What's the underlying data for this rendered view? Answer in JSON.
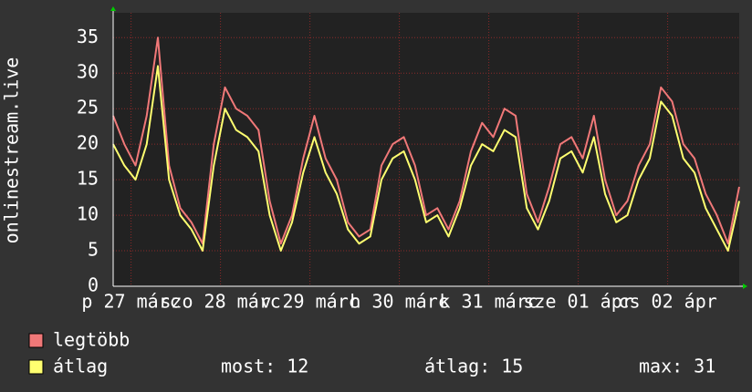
{
  "chart_data": {
    "type": "line",
    "y_label": "onlinestream.live",
    "x": [
      0,
      0.125,
      0.25,
      0.375,
      0.5,
      0.625,
      0.75,
      0.875,
      1,
      1.125,
      1.25,
      1.375,
      1.5,
      1.625,
      1.75,
      1.875,
      2,
      2.125,
      2.25,
      2.375,
      2.5,
      2.625,
      2.75,
      2.875,
      3,
      3.125,
      3.25,
      3.375,
      3.5,
      3.625,
      3.75,
      3.875,
      4,
      4.125,
      4.25,
      4.375,
      4.5,
      4.625,
      4.75,
      4.875,
      5,
      5.125,
      5.25,
      5.375,
      5.5,
      5.625,
      5.75,
      5.875,
      6,
      6.125,
      6.25,
      6.375,
      6.5,
      6.625,
      6.75,
      6.875,
      7
    ],
    "xlim": [
      0,
      7
    ],
    "xticks": [
      {
        "value": 0.2,
        "label": "p 27 márc"
      },
      {
        "value": 1.2,
        "label": "szo 28 márc"
      },
      {
        "value": 2.2,
        "label": "v 29 márc"
      },
      {
        "value": 3.2,
        "label": "h 30 márc"
      },
      {
        "value": 4.2,
        "label": "k 31 márc"
      },
      {
        "value": 5.2,
        "label": "sze 01 ápr"
      },
      {
        "value": 6.2,
        "label": "cs 02 ápr"
      }
    ],
    "ylim": [
      0,
      38.5
    ],
    "yticks": [
      0,
      5,
      10,
      15,
      20,
      25,
      30,
      35
    ],
    "grid": true,
    "series": [
      {
        "name": "legtöbb",
        "color": "#f07878",
        "values": [
          24,
          20,
          17,
          24,
          35,
          17,
          11,
          9,
          6,
          20,
          28,
          25,
          24,
          22,
          12,
          6,
          10,
          18,
          24,
          18,
          15,
          9,
          7,
          8,
          17,
          20,
          21,
          17,
          10,
          11,
          8,
          12,
          19,
          23,
          21,
          25,
          24,
          13,
          9,
          14,
          20,
          21,
          18,
          24,
          15,
          10,
          12,
          17,
          20,
          28,
          26,
          20,
          18,
          13,
          10,
          6,
          14
        ]
      },
      {
        "name": "átlag",
        "color": "#ffff70",
        "values": [
          20,
          17,
          15,
          20,
          31,
          15,
          10,
          8,
          5,
          17,
          25,
          22,
          21,
          19,
          10,
          5,
          9,
          16,
          21,
          16,
          13,
          8,
          6,
          7,
          15,
          18,
          19,
          15,
          9,
          10,
          7,
          11,
          17,
          20,
          19,
          22,
          21,
          11,
          8,
          12,
          18,
          19,
          16,
          21,
          13,
          9,
          10,
          15,
          18,
          26,
          24,
          18,
          16,
          11,
          8,
          5,
          12
        ]
      }
    ],
    "stats": [
      {
        "label": "most:",
        "value": 12
      },
      {
        "label": "átlag:",
        "value": 15
      },
      {
        "label": "max:",
        "value": 31
      }
    ]
  }
}
